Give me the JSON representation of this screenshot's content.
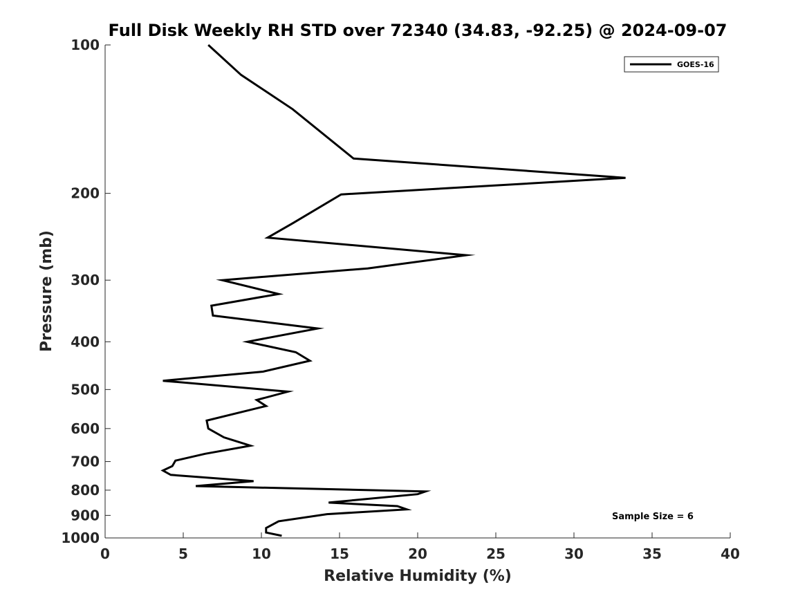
{
  "chart_data": {
    "type": "line",
    "title": "Full Disk Weekly RH STD over 72340 (34.83, -92.25) @ 2024-09-07",
    "xlabel": "Relative Humidity (%)",
    "ylabel": "Pressure (mb)",
    "xlim": [
      0,
      40
    ],
    "ylim": [
      100,
      1000
    ],
    "y_scale": "log",
    "y_reversed": true,
    "x_ticks": [
      "0",
      "5",
      "10",
      "15",
      "20",
      "25",
      "30",
      "35",
      "40"
    ],
    "y_ticks": [
      "100",
      "200",
      "300",
      "400",
      "500",
      "600",
      "700",
      "800",
      "900",
      "1000"
    ],
    "legend_placement": "top-right",
    "grid": false,
    "annotation": "Sample Size = 6",
    "series": [
      {
        "name": "GOES-16",
        "color": "#000000",
        "x": [
          6.6,
          8.7,
          12.0,
          15.9,
          33.3,
          15.1,
          12.0,
          10.4,
          23.1,
          16.8,
          7.5,
          11.1,
          6.8,
          6.9,
          13.6,
          9.1,
          12.2,
          13.1,
          10.1,
          3.7,
          11.7,
          9.7,
          10.3,
          6.5,
          6.6,
          7.6,
          9.3,
          6.4,
          4.5,
          4.3,
          3.7,
          4.2,
          9.5,
          5.8,
          20.5,
          20.0,
          14.3,
          18.7,
          19.3,
          14.2,
          11.1,
          10.3,
          10.3,
          11.3
        ],
        "y": [
          100,
          115,
          135,
          170,
          186,
          201,
          230,
          246,
          267,
          284,
          300,
          320,
          338,
          354,
          376,
          400,
          420,
          437,
          460,
          480,
          505,
          525,
          540,
          578,
          600,
          625,
          650,
          675,
          697,
          715,
          730,
          745,
          767,
          785,
          805,
          815,
          848,
          862,
          875,
          895,
          925,
          955,
          975,
          990
        ]
      }
    ]
  }
}
